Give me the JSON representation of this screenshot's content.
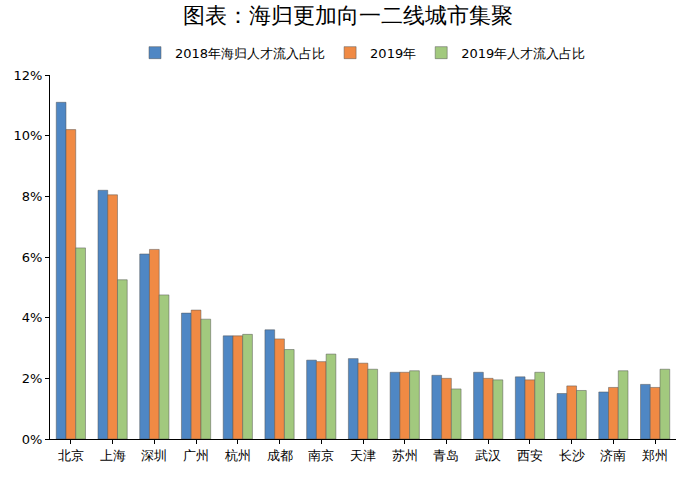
{
  "chart_data": {
    "type": "bar",
    "title": "图表：海归更加向一二线城市集聚",
    "categories": [
      "北京",
      "上海",
      "深圳",
      "广州",
      "杭州",
      "成都",
      "南京",
      "天津",
      "苏州",
      "青岛",
      "武汉",
      "西安",
      "长沙",
      "济南",
      "郑州"
    ],
    "series": [
      {
        "name": "2018年海归人才流入占比",
        "color": "#4f87c4",
        "values": [
          11.1,
          8.2,
          6.1,
          4.15,
          3.4,
          3.6,
          2.6,
          2.65,
          2.2,
          2.1,
          2.2,
          2.05,
          1.5,
          1.55,
          1.8
        ]
      },
      {
        "name": "2019年",
        "color": "#f08a44",
        "values": [
          10.2,
          8.05,
          6.25,
          4.25,
          3.4,
          3.3,
          2.55,
          2.5,
          2.2,
          2.0,
          2.0,
          1.95,
          1.75,
          1.7,
          1.7
        ]
      },
      {
        "name": "2019年人才流入占比",
        "color": "#a2c97e",
        "values": [
          6.3,
          5.25,
          4.75,
          3.95,
          3.45,
          2.95,
          2.8,
          2.3,
          2.25,
          1.65,
          1.95,
          2.2,
          1.6,
          2.25,
          2.3
        ]
      }
    ],
    "ylim": [
      0,
      12
    ],
    "yticks": [
      {
        "value": 0,
        "label": "0%"
      },
      {
        "value": 2,
        "label": "2%"
      },
      {
        "value": 4,
        "label": "4%"
      },
      {
        "value": 6,
        "label": "6%"
      },
      {
        "value": 8,
        "label": "8%"
      },
      {
        "value": 10,
        "label": "10%"
      },
      {
        "value": 12,
        "label": "12%"
      }
    ],
    "grid": false,
    "legend": "top"
  }
}
